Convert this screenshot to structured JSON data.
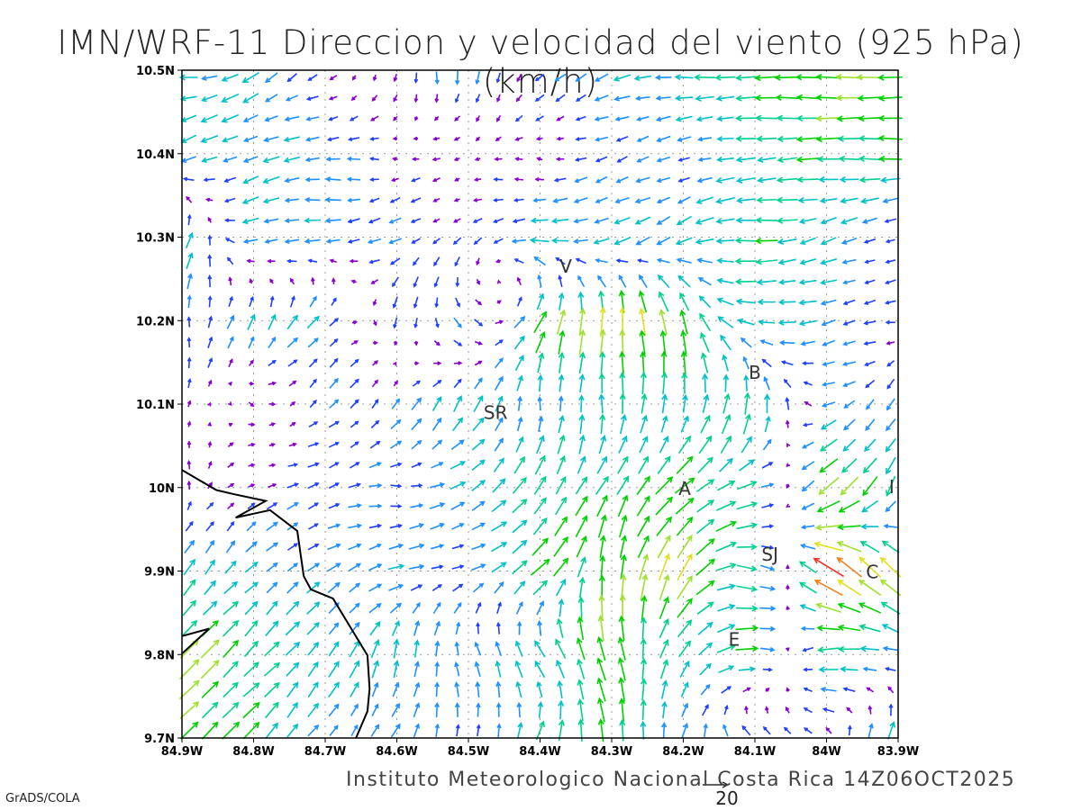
{
  "title": "IMN/WRF-11 Direccion y velocidad del viento (925 hPa)(km/h)",
  "footer": {
    "credit": "Instituto Meteorologico Nacional Costa Rica 14Z06OCT2025",
    "software": "GrADS/COLA",
    "reference_vector_label": "20"
  },
  "chart_data": {
    "type": "vector-field",
    "lon_range": [
      -84.9,
      -83.9
    ],
    "lat_range": [
      9.7,
      10.5
    ],
    "x_ticks": [
      {
        "v": -84.9,
        "label": "84.9W"
      },
      {
        "v": -84.8,
        "label": "84.8W"
      },
      {
        "v": -84.7,
        "label": "84.7W"
      },
      {
        "v": -84.6,
        "label": "84.6W"
      },
      {
        "v": -84.5,
        "label": "84.5W"
      },
      {
        "v": -84.4,
        "label": "84.4W"
      },
      {
        "v": -84.3,
        "label": "84.3W"
      },
      {
        "v": -84.2,
        "label": "84.2W"
      },
      {
        "v": -84.1,
        "label": "84.1W"
      },
      {
        "v": -84.0,
        "label": "84W"
      },
      {
        "v": -83.9,
        "label": "83.9W"
      }
    ],
    "y_ticks": [
      {
        "v": 10.5,
        "label": "10.5N"
      },
      {
        "v": 10.4,
        "label": "10.4N"
      },
      {
        "v": 10.3,
        "label": "10.3N"
      },
      {
        "v": 10.2,
        "label": "10.2N"
      },
      {
        "v": 10.1,
        "label": "10.1N"
      },
      {
        "v": 10.0,
        "label": "10N"
      },
      {
        "v": 9.9,
        "label": "9.9N"
      },
      {
        "v": 9.8,
        "label": "9.8N"
      },
      {
        "v": 9.7,
        "label": "9.7N"
      }
    ],
    "grid": "dotted",
    "reference_vector_kmh": 20,
    "coarse_wind_lons": [
      -84.9,
      -84.8,
      -84.7,
      -84.6,
      -84.5,
      -84.4,
      -84.3,
      -84.2,
      -84.1,
      -84.0,
      -83.9
    ],
    "coarse_wind_lats": [
      10.5,
      10.4,
      10.3,
      10.2,
      10.1,
      10.0,
      9.9,
      9.8,
      9.7
    ],
    "wind_uv_kmh": [
      [
        [
          -10,
          0
        ],
        [
          -8,
          -5
        ],
        [
          -3,
          -3
        ],
        [
          0,
          -4
        ],
        [
          0,
          -8
        ],
        [
          -4,
          -4
        ],
        [
          -8,
          -3
        ],
        [
          -10,
          0
        ],
        [
          -12,
          0
        ],
        [
          -14,
          0
        ],
        [
          -14,
          0
        ]
      ],
      [
        [
          -8,
          -4
        ],
        [
          -8,
          -3
        ],
        [
          -8,
          0
        ],
        [
          -3,
          0
        ],
        [
          -3,
          0
        ],
        [
          -3,
          0
        ],
        [
          -6,
          -2
        ],
        [
          -6,
          -2
        ],
        [
          -10,
          -1
        ],
        [
          -12,
          0
        ],
        [
          -12,
          0
        ]
      ],
      [
        [
          4,
          10
        ],
        [
          -8,
          -3
        ],
        [
          -8,
          0
        ],
        [
          -6,
          -3
        ],
        [
          -3,
          -3
        ],
        [
          -10,
          0
        ],
        [
          -8,
          -4
        ],
        [
          -8,
          -4
        ],
        [
          -12,
          0
        ],
        [
          -8,
          -3
        ],
        [
          -5,
          -2
        ]
      ],
      [
        [
          0,
          6
        ],
        [
          4,
          8
        ],
        [
          6,
          6
        ],
        [
          -2,
          -6
        ],
        [
          4,
          -6
        ],
        [
          6,
          12
        ],
        [
          0,
          16
        ],
        [
          -4,
          14
        ],
        [
          -10,
          0
        ],
        [
          -8,
          -2
        ],
        [
          -4,
          0
        ]
      ],
      [
        [
          0,
          4
        ],
        [
          2,
          -2
        ],
        [
          4,
          4
        ],
        [
          4,
          6
        ],
        [
          5,
          8
        ],
        [
          0,
          8
        ],
        [
          0,
          10
        ],
        [
          2,
          10
        ],
        [
          2,
          12
        ],
        [
          -6,
          -2
        ],
        [
          -4,
          -6
        ]
      ],
      [
        [
          0,
          4
        ],
        [
          4,
          2
        ],
        [
          6,
          2
        ],
        [
          6,
          0
        ],
        [
          8,
          4
        ],
        [
          6,
          10
        ],
        [
          6,
          10
        ],
        [
          10,
          8
        ],
        [
          10,
          4
        ],
        [
          -12,
          -10
        ],
        [
          -4,
          -10
        ]
      ],
      [
        [
          6,
          8
        ],
        [
          6,
          6
        ],
        [
          6,
          4
        ],
        [
          8,
          2
        ],
        [
          6,
          2
        ],
        [
          10,
          8
        ],
        [
          0,
          14
        ],
        [
          8,
          14
        ],
        [
          12,
          -4
        ],
        [
          -16,
          10
        ],
        [
          -10,
          12
        ]
      ],
      [
        [
          10,
          10
        ],
        [
          8,
          8
        ],
        [
          6,
          8
        ],
        [
          2,
          10
        ],
        [
          -2,
          8
        ],
        [
          -6,
          8
        ],
        [
          -4,
          14
        ],
        [
          6,
          8
        ],
        [
          12,
          0
        ],
        [
          -12,
          -2
        ],
        [
          -8,
          0
        ]
      ],
      [
        [
          10,
          10
        ],
        [
          8,
          8
        ],
        [
          4,
          6
        ],
        [
          4,
          6
        ],
        [
          0,
          6
        ],
        [
          4,
          10
        ],
        [
          -2,
          12
        ],
        [
          2,
          8
        ],
        [
          -6,
          4
        ],
        [
          -2,
          4
        ],
        [
          6,
          10
        ]
      ]
    ],
    "coastline": [
      [
        -84.9,
        10.021
      ],
      [
        -84.852,
        9.997
      ],
      [
        -84.827,
        9.992
      ],
      [
        -84.783,
        9.984
      ],
      [
        -84.825,
        9.964
      ],
      [
        -84.777,
        9.973
      ],
      [
        -84.739,
        9.948
      ],
      [
        -84.73,
        9.894
      ],
      [
        -84.72,
        9.878
      ],
      [
        -84.689,
        9.867
      ],
      [
        -84.67,
        9.84
      ],
      [
        -84.641,
        9.799
      ],
      [
        -84.638,
        9.759
      ],
      [
        -84.641,
        9.732
      ],
      [
        -84.657,
        9.7
      ]
    ],
    "coastline_west": [
      [
        -84.9,
        9.822
      ],
      [
        -84.862,
        9.831
      ],
      [
        -84.9,
        9.801
      ]
    ],
    "stations": [
      {
        "label": "V",
        "lon": -84.364,
        "lat": 10.266
      },
      {
        "label": "SR",
        "lon": -84.462,
        "lat": 10.091
      },
      {
        "label": "B",
        "lon": -84.1,
        "lat": 10.139
      },
      {
        "label": "A",
        "lon": -84.198,
        "lat": 10.0
      },
      {
        "label": "I",
        "lon": -83.909,
        "lat": 10.002
      },
      {
        "label": "SJ",
        "lon": -84.079,
        "lat": 9.921
      },
      {
        "label": "C",
        "lon": -83.936,
        "lat": 9.9
      },
      {
        "label": "E",
        "lon": -84.129,
        "lat": 9.819
      }
    ],
    "speed_colors": [
      "#8a00d4",
      "#2040ff",
      "#1e90ff",
      "#00c0c8",
      "#00d090",
      "#00d000",
      "#a0e030",
      "#e0e020",
      "#f08020",
      "#f03020"
    ]
  }
}
